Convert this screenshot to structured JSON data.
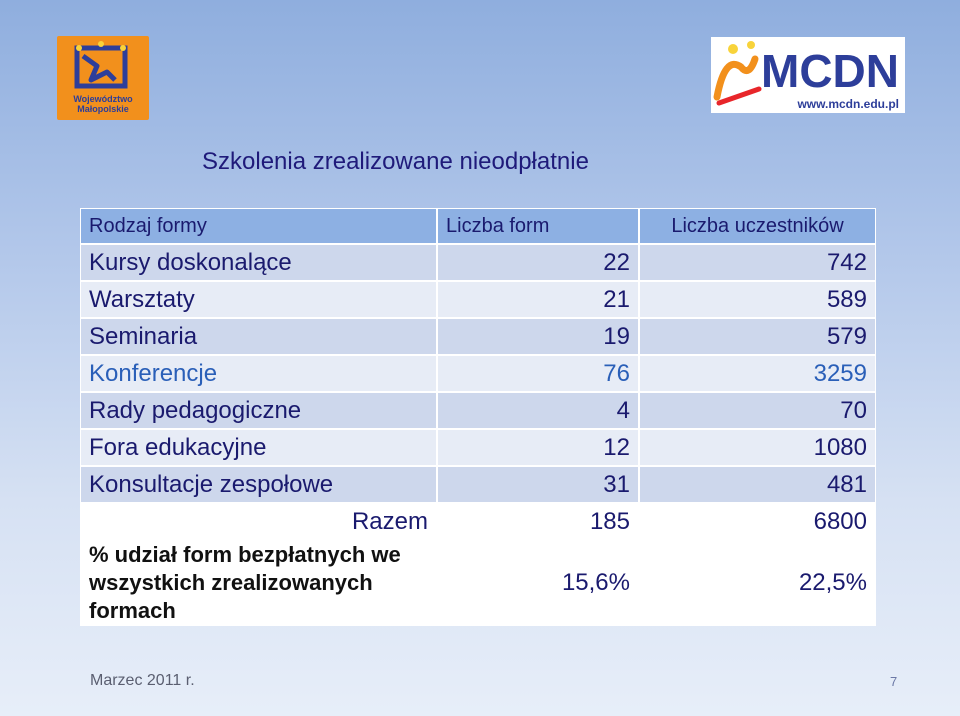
{
  "logos": {
    "left_text_line1": "Województwo",
    "left_text_line2": "Małopolskie",
    "right_name": "MCDN",
    "right_url": "www.mcdn.edu.pl"
  },
  "title": "Szkolenia zrealizowane nieodpłatnie",
  "table": {
    "headers": [
      "Rodzaj formy",
      "Liczba form",
      "Liczba uczestników"
    ],
    "rows": [
      {
        "name": "Kursy doskonalące",
        "forms": "22",
        "participants": "742"
      },
      {
        "name": "Warsztaty",
        "forms": "21",
        "participants": "589"
      },
      {
        "name": "Seminaria",
        "forms": "19",
        "participants": "579"
      },
      {
        "name": "Konferencje",
        "forms": "76",
        "participants": "3259"
      },
      {
        "name": "Rady pedagogiczne",
        "forms": "4",
        "participants": "70"
      },
      {
        "name": "Fora edukacyjne",
        "forms": "12",
        "participants": "1080"
      },
      {
        "name": "Konsultacje zespołowe",
        "forms": "31",
        "participants": "481"
      }
    ],
    "total": {
      "label": "Razem",
      "forms": "185",
      "participants": "6800"
    },
    "percent": {
      "label": "% udział form bezpłatnych we wszystkich zrealizowanych formach",
      "forms": "15,6%",
      "participants": "22,5%"
    }
  },
  "footer": {
    "date": "Marzec 2011 r.",
    "page": "7"
  },
  "colors": {
    "header_bg": "#8db0e3",
    "row_odd": "#cdd7ec",
    "row_even": "#e7ecf6",
    "text": "#1a1a6e",
    "konferencje_text": "#2a5fb8"
  }
}
